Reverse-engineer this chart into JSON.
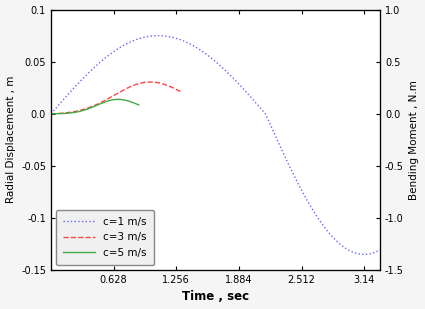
{
  "xlabel": "Time , sec",
  "ylabel_left": "Radial Displacement , m",
  "ylabel_right": "Bending Moment , N.m",
  "ylim_left": [
    -0.15,
    0.1
  ],
  "ylim_right": [
    -1.5,
    1.0
  ],
  "xlim": [
    0,
    3.3
  ],
  "xticks": [
    0.628,
    1.256,
    1.884,
    2.512,
    3.14
  ],
  "yticks_left": [
    -0.15,
    -0.1,
    -0.05,
    0.0,
    0.05,
    0.1
  ],
  "yticks_right": [
    -1.5,
    -1.0,
    -0.5,
    0.0,
    0.5,
    1.0
  ],
  "c1_color": "#6666ff",
  "c3_color": "#ff4444",
  "c5_color": "#44aa44",
  "legend_labels": [
    "c=1 m/s",
    "c=3 m/s",
    "c=5 m/s"
  ],
  "legend_facecolor": "#f0f0f0",
  "legend_edgecolor": "#888888",
  "fig_facecolor": "#f5f5f5"
}
